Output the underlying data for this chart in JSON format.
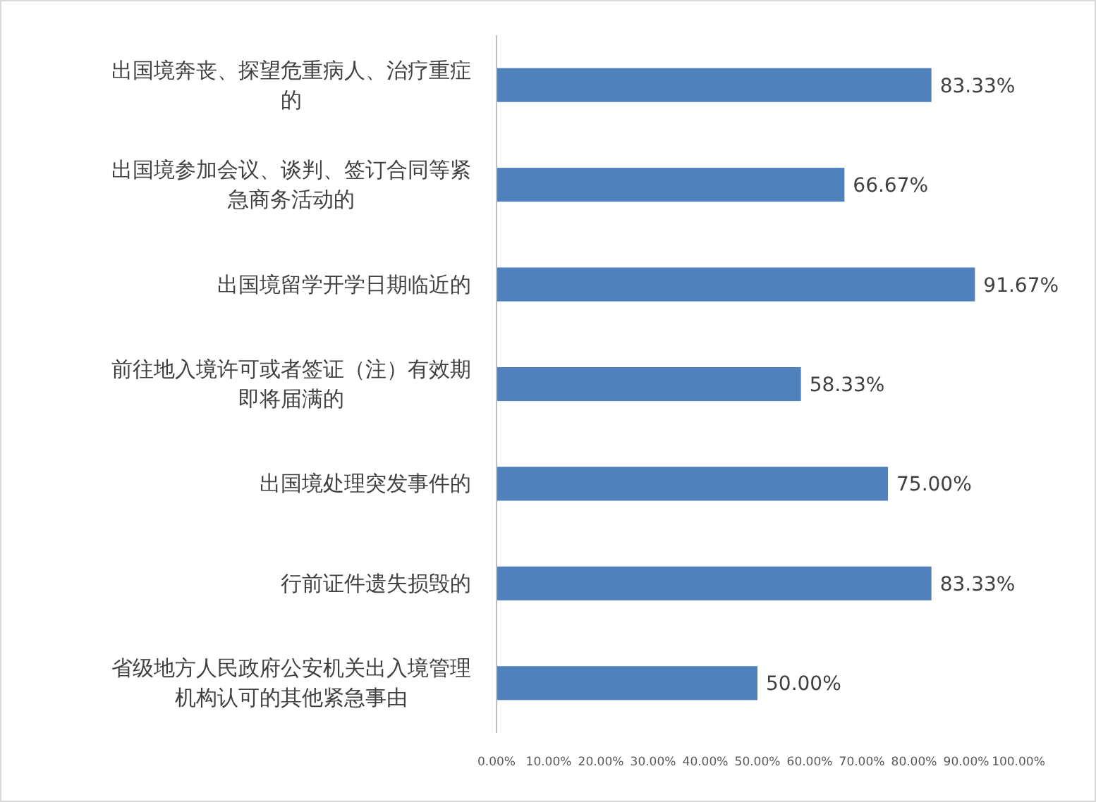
{
  "chart_data": {
    "type": "bar",
    "orientation": "horizontal",
    "categories": [
      "出国境奔丧、探望危重病人、治疗重症的",
      "出国境参加会议、谈判、签订合同等紧急商务活动的",
      "出国境留学开学日期临近的",
      "前往地入境许可或者签证（注）有效期即将届满的",
      "出国境处理突发事件的",
      "行前证件遗失损毁的",
      "省级地方人民政府公安机关出入境管理机构认可的其他紧急事由"
    ],
    "values": [
      83.33,
      66.67,
      91.67,
      58.33,
      75.0,
      83.33,
      50.0
    ],
    "value_labels": [
      "83.33%",
      "66.67%",
      "91.67%",
      "58.33%",
      "75.00%",
      "83.33%",
      "50.00%"
    ],
    "color": "#4f81bd",
    "xlim": [
      0,
      100
    ],
    "xticks": [
      {
        "value": 0,
        "label": "0.00%"
      },
      {
        "value": 10,
        "label": "10.00%"
      },
      {
        "value": 20,
        "label": "20.00%"
      },
      {
        "value": 30,
        "label": "30.00%"
      },
      {
        "value": 40,
        "label": "40.00%"
      },
      {
        "value": 50,
        "label": "50.00%"
      },
      {
        "value": 60,
        "label": "60.00%"
      },
      {
        "value": 70,
        "label": "70.00%"
      },
      {
        "value": 80,
        "label": "80.00%"
      },
      {
        "value": 90,
        "label": "90.00%"
      },
      {
        "value": 100,
        "label": "100.00%"
      }
    ],
    "grid": false
  }
}
